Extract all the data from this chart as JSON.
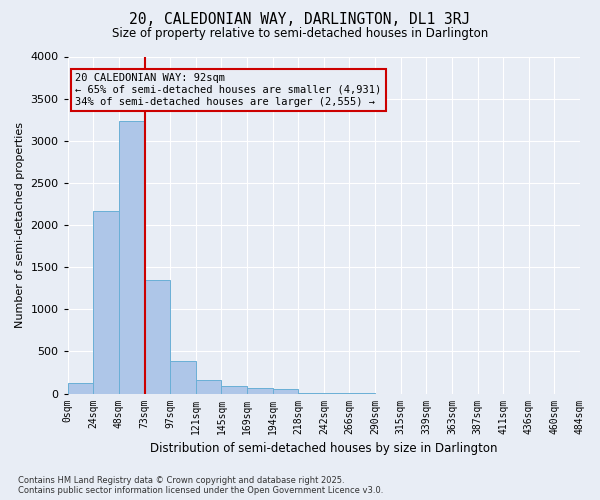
{
  "title": "20, CALEDONIAN WAY, DARLINGTON, DL1 3RJ",
  "subtitle": "Size of property relative to semi-detached houses in Darlington",
  "xlabel": "Distribution of semi-detached houses by size in Darlington",
  "ylabel": "Number of semi-detached properties",
  "property_label": "20 CALEDONIAN WAY: 92sqm",
  "pct_smaller": 65,
  "count_smaller": 4931,
  "pct_larger": 34,
  "count_larger": 2555,
  "bin_labels": [
    "0sqm",
    "24sqm",
    "48sqm",
    "73sqm",
    "97sqm",
    "121sqm",
    "145sqm",
    "169sqm",
    "194sqm",
    "218sqm",
    "242sqm",
    "266sqm",
    "290sqm",
    "315sqm",
    "339sqm",
    "363sqm",
    "387sqm",
    "411sqm",
    "436sqm",
    "460sqm",
    "484sqm"
  ],
  "bar_heights": [
    120,
    2170,
    3230,
    1350,
    390,
    160,
    90,
    60,
    55,
    10,
    5,
    5,
    0,
    0,
    0,
    0,
    0,
    0,
    0,
    0
  ],
  "vline_bin": 3,
  "bar_color": "#aec6e8",
  "bar_edge_color": "#6aafd6",
  "vline_color": "#cc0000",
  "annotation_box_color": "#cc0000",
  "ylim": [
    0,
    4000
  ],
  "yticks": [
    0,
    500,
    1000,
    1500,
    2000,
    2500,
    3000,
    3500,
    4000
  ],
  "bg_color": "#e8edf5",
  "footer_line1": "Contains HM Land Registry data © Crown copyright and database right 2025.",
  "footer_line2": "Contains public sector information licensed under the Open Government Licence v3.0."
}
